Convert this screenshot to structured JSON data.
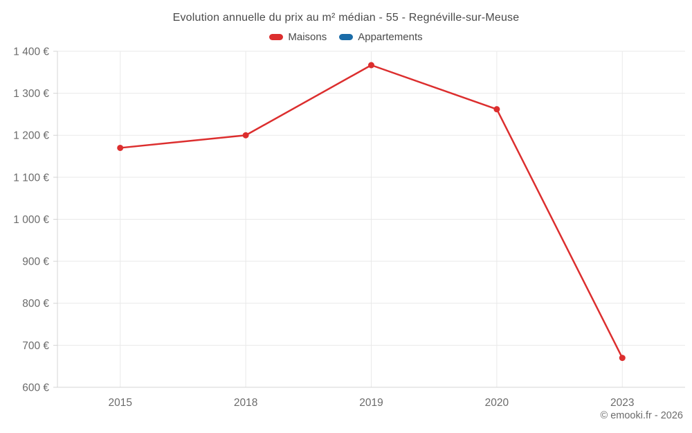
{
  "title": "Evolution annuelle du prix au m² médian - 55 - Regnéville-sur-Meuse",
  "legend": [
    {
      "label": "Maisons",
      "color": "#dc2e2e"
    },
    {
      "label": "Appartements",
      "color": "#1b6ca8"
    }
  ],
  "footer": {
    "copyright": "© emooki.fr - 2026"
  },
  "colors": {
    "grid": "#e9e9e9",
    "axis": "#d4d4d4",
    "tick_text": "#6b6b6b",
    "title_text": "#4a4a4a",
    "maisons": "#dc2e2e",
    "appartements": "#1b6ca8"
  },
  "chart_data": {
    "type": "line",
    "title": "Evolution annuelle du prix au m² médian - 55 - Regnéville-sur-Meuse",
    "categories": [
      "2015",
      "2018",
      "2019",
      "2020",
      "2023"
    ],
    "series": [
      {
        "name": "Maisons",
        "color": "#dc2e2e",
        "values": [
          1170,
          1200,
          1367,
          1262,
          670
        ]
      },
      {
        "name": "Appartements",
        "color": "#1b6ca8",
        "values": []
      }
    ],
    "xlabel": "",
    "ylabel": "",
    "ylim": [
      600,
      1400
    ],
    "grid": true,
    "legend_position": "top",
    "y_ticks": [
      {
        "value": 600,
        "label": "600 €"
      },
      {
        "value": 700,
        "label": "700 €"
      },
      {
        "value": 800,
        "label": "800 €"
      },
      {
        "value": 900,
        "label": "900 €"
      },
      {
        "value": 1000,
        "label": "1 000 €"
      },
      {
        "value": 1100,
        "label": "1 100 €"
      },
      {
        "value": 1200,
        "label": "1 200 €"
      },
      {
        "value": 1300,
        "label": "1 300 €"
      },
      {
        "value": 1400,
        "label": "1 400 €"
      }
    ]
  }
}
